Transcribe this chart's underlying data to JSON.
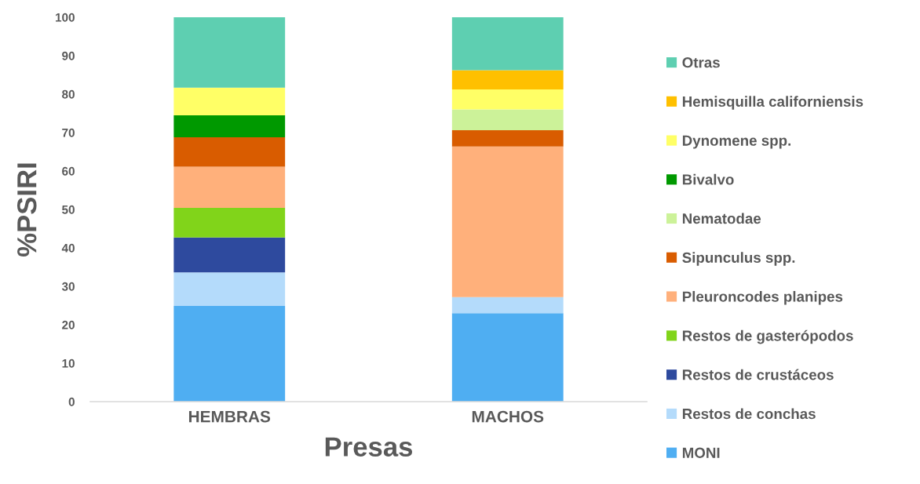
{
  "chart_data": {
    "type": "bar",
    "stacked": true,
    "xlabel": "Presas",
    "ylabel": "%PSIRI",
    "categories": [
      "HEMBRAS",
      "MACHOS"
    ],
    "series": [
      {
        "name": "MONI",
        "color": "#4faef2",
        "values": [
          24.9,
          23.0
        ]
      },
      {
        "name": "Restos de conchas",
        "color": "#b4dbfb",
        "values": [
          8.7,
          4.2
        ]
      },
      {
        "name": "Restos de crustáceos",
        "color": "#2e4a9e",
        "values": [
          9.1,
          null
        ]
      },
      {
        "name": "Restos de gasterópodos",
        "color": "#81d41a",
        "values": [
          7.7,
          null
        ]
      },
      {
        "name": "Pleuroncodes planipes",
        "color": "#ffb07b",
        "values": [
          10.7,
          39.2
        ]
      },
      {
        "name": "Sipunculus spp.",
        "color": "#d95c00",
        "values": [
          7.7,
          4.2
        ]
      },
      {
        "name": "Nematodae",
        "color": "#ccf299",
        "values": [
          null,
          5.4
        ]
      },
      {
        "name": "Bivalvo",
        "color": "#009900",
        "values": [
          5.7,
          null
        ]
      },
      {
        "name": "Dynomene spp.",
        "color": "#ffff66",
        "values": [
          7.2,
          5.2
        ]
      },
      {
        "name": "Hemisquilla californiensis",
        "color": "#ffc000",
        "values": [
          null,
          5.0
        ]
      },
      {
        "name": "Otras",
        "color": "#5ecfb1",
        "values": [
          18.3,
          13.8
        ]
      }
    ],
    "ylim": [
      0,
      100
    ],
    "yticks": [
      0,
      10,
      20,
      30,
      40,
      50,
      60,
      70,
      80,
      90,
      100
    ],
    "grid": false,
    "legend": "right"
  }
}
